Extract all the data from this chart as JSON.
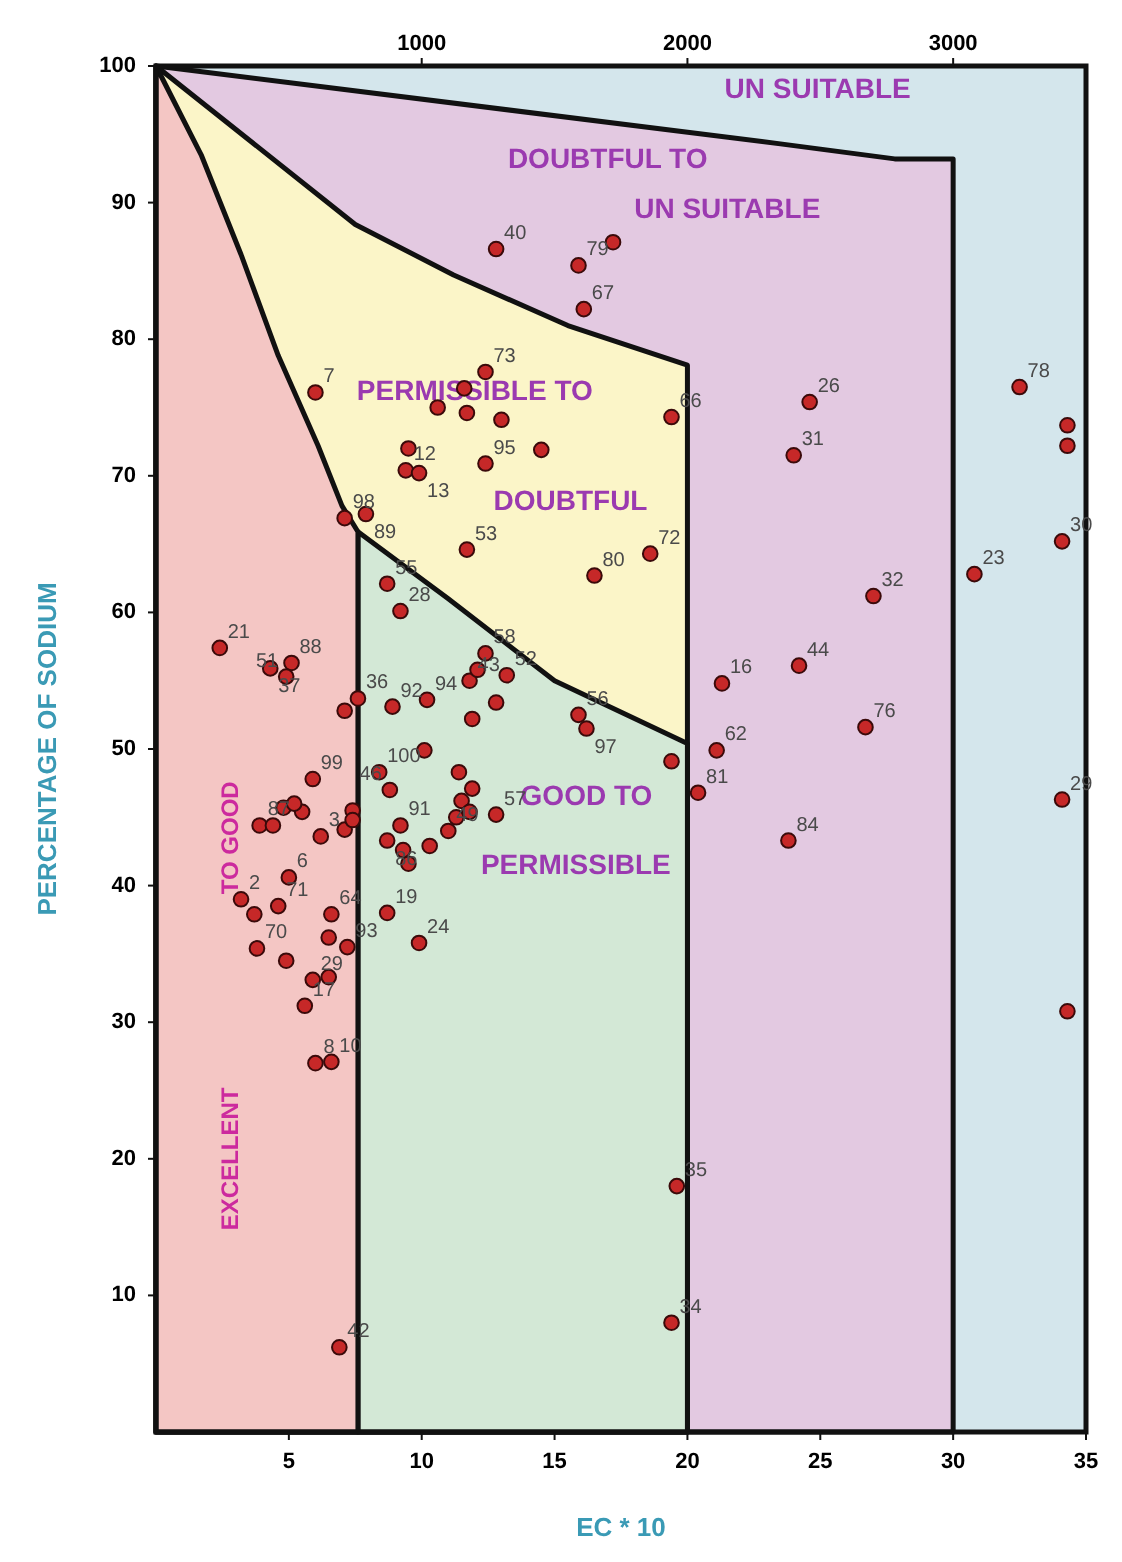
{
  "chart_data": {
    "type": "scatter",
    "xlabel": "EC * 10",
    "ylabel": "PERCENTAGE OF SODIUM",
    "xlim": [
      0,
      35
    ],
    "xticks": [
      5,
      10,
      15,
      20,
      25,
      30,
      35
    ],
    "ylim": [
      0,
      100
    ],
    "yticks": [
      10,
      20,
      30,
      40,
      50,
      60,
      70,
      80,
      90,
      100
    ],
    "x2lim": [
      0,
      3500
    ],
    "x2ticks": [
      1000,
      2000,
      3000
    ],
    "grid": false,
    "annotations": [
      "UN SUITABLE",
      "DOUBTFUL TO",
      "UN SUITABLE",
      "PERMISSIBLE TO",
      "DOUBTFUL",
      "GOOD TO",
      "PERMISSIBLE",
      "TO GOOD",
      "EXCELLENT",
      {
        "text": "40",
        "x": 12.8,
        "y": 86.6
      },
      {
        "text": "79",
        "x": 15.9,
        "y": 85.4
      },
      {
        "text": "67",
        "x": 16.1,
        "y": 82.2
      },
      {
        "text": "73",
        "x": 12.4,
        "y": 77.6
      },
      {
        "text": "7",
        "x": 6.0,
        "y": 76.1
      },
      {
        "text": "66",
        "x": 19.4,
        "y": 74.3
      },
      {
        "text": "95",
        "x": 12.4,
        "y": 70.9
      },
      {
        "text": "12",
        "x": 9.4,
        "y": 70.4
      },
      {
        "text": "13",
        "x": 9.9,
        "y": 70.2
      },
      {
        "text": "98",
        "x": 7.1,
        "y": 66.9
      },
      {
        "text": "89",
        "x": 7.9,
        "y": 67.2
      },
      {
        "text": "53",
        "x": 11.7,
        "y": 64.6
      },
      {
        "text": "80",
        "x": 16.5,
        "y": 62.7
      },
      {
        "text": "72",
        "x": 18.6,
        "y": 64.3
      },
      {
        "text": "55",
        "x": 8.7,
        "y": 62.1
      },
      {
        "text": "28",
        "x": 9.2,
        "y": 60.1
      },
      {
        "text": "21",
        "x": 2.4,
        "y": 57.4
      },
      {
        "text": "88",
        "x": 5.1,
        "y": 56.3
      },
      {
        "text": "37",
        "x": 4.3,
        "y": 55.9
      },
      {
        "text": "51",
        "x": 4.9,
        "y": 55.3
      },
      {
        "text": "36",
        "x": 7.6,
        "y": 53.7
      },
      {
        "text": "92",
        "x": 8.9,
        "y": 53.1
      },
      {
        "text": "94",
        "x": 10.2,
        "y": 53.6
      },
      {
        "text": "43",
        "x": 11.8,
        "y": 55.0
      },
      {
        "text": "58",
        "x": 12.4,
        "y": 57.0
      },
      {
        "text": "52",
        "x": 13.2,
        "y": 55.4
      },
      {
        "text": "56",
        "x": 15.9,
        "y": 52.5
      },
      {
        "text": "97",
        "x": 16.2,
        "y": 51.5
      },
      {
        "text": "81",
        "x": 20.4,
        "y": 46.8
      },
      {
        "text": "62",
        "x": 21.1,
        "y": 49.9
      },
      {
        "text": "57",
        "x": 12.8,
        "y": 45.2
      },
      {
        "text": "49",
        "x": 11.0,
        "y": 44.0
      },
      {
        "text": "91",
        "x": 9.2,
        "y": 44.4
      },
      {
        "text": "100",
        "x": 8.4,
        "y": 48.3
      },
      {
        "text": "46",
        "x": 8.8,
        "y": 47.0
      },
      {
        "text": "99",
        "x": 5.9,
        "y": 47.8
      },
      {
        "text": "87",
        "x": 3.9,
        "y": 44.4
      },
      {
        "text": "3",
        "x": 6.2,
        "y": 43.6
      },
      {
        "text": "86",
        "x": 8.7,
        "y": 43.3
      },
      {
        "text": "2",
        "x": 3.2,
        "y": 39.0
      },
      {
        "text": "71",
        "x": 4.6,
        "y": 38.5
      },
      {
        "text": "6",
        "x": 5.0,
        "y": 40.6
      },
      {
        "text": "64",
        "x": 6.6,
        "y": 37.9
      },
      {
        "text": "93",
        "x": 7.2,
        "y": 35.5
      },
      {
        "text": "70",
        "x": 3.8,
        "y": 35.4
      },
      {
        "text": "29",
        "x": 5.9,
        "y": 33.1
      },
      {
        "text": "17",
        "x": 5.6,
        "y": 31.2
      },
      {
        "text": "8",
        "x": 6.0,
        "y": 27.0
      },
      {
        "text": "10",
        "x": 6.6,
        "y": 27.1
      },
      {
        "text": "19",
        "x": 8.7,
        "y": 38.0
      },
      {
        "text": "24",
        "x": 9.9,
        "y": 35.8
      },
      {
        "text": "35",
        "x": 19.6,
        "y": 18.0
      },
      {
        "text": "34",
        "x": 19.4,
        "y": 8.0
      },
      {
        "text": "42",
        "x": 6.9,
        "y": 6.2
      },
      {
        "text": "84",
        "x": 23.8,
        "y": 43.3
      },
      {
        "text": "29",
        "x": 34.1,
        "y": 46.3
      },
      {
        "text": "26",
        "x": 24.6,
        "y": 75.4
      },
      {
        "text": "31",
        "x": 24.0,
        "y": 71.5
      },
      {
        "text": "78",
        "x": 32.5,
        "y": 76.5
      },
      {
        "text": "30",
        "x": 34.1,
        "y": 65.2
      },
      {
        "text": "23",
        "x": 30.8,
        "y": 62.8
      },
      {
        "text": "32",
        "x": 27.0,
        "y": 61.2
      },
      {
        "text": "44",
        "x": 24.2,
        "y": 56.1
      },
      {
        "text": "16",
        "x": 21.3,
        "y": 54.8
      },
      {
        "text": "76",
        "x": 26.7,
        "y": 51.6
      }
    ],
    "series": [
      {
        "type": "area",
        "color": "#e3c9e1",
        "x": [
          0,
          23.5,
          27.8,
          30
        ],
        "values": [
          100,
          94.3,
          93.2,
          93.2
        ]
      },
      {
        "type": "area",
        "color": "#fbf5c8",
        "x": [
          0,
          7.5,
          11.2,
          15.5,
          20
        ],
        "values": [
          100,
          88.4,
          84.7,
          81,
          78.1
        ]
      },
      {
        "type": "area",
        "color": "#d3e8d6",
        "x": [
          7.6,
          11,
          15,
          20
        ],
        "values": [
          65.9,
          61,
          55,
          50.4
        ]
      },
      {
        "type": "area",
        "color": "#f4c6c4",
        "x": [
          0,
          1.7,
          3.2,
          4.6,
          6.1,
          7,
          7.6
        ],
        "values": [
          100,
          93.5,
          86.2,
          78.8,
          72.2,
          67.8,
          65.9
        ]
      },
      {
        "color": "#c62828",
        "x": [
          12.8,
          15.9,
          17.2,
          16.1,
          12.4,
          11.6,
          10.6,
          11.7,
          13.0,
          6.0,
          19.4,
          9.5,
          14.5,
          12.4,
          9.4,
          9.9,
          7.1,
          7.9,
          11.7,
          16.5,
          18.6,
          8.7,
          9.2,
          2.4,
          5.1,
          4.3,
          4.9,
          7.6,
          7.1,
          8.9,
          10.2,
          11.8,
          12.1,
          12.4,
          13.2,
          12.8,
          11.9,
          15.9,
          16.2,
          19.4,
          20.4,
          21.1,
          10.1,
          11.4,
          11.9,
          11.5,
          12.8,
          11.3,
          11.0,
          11.8,
          10.3,
          9.2,
          9.3,
          9.5,
          8.4,
          8.8,
          5.9,
          5.5,
          4.8,
          5.2,
          3.9,
          4.4,
          6.2,
          7.1,
          7.4,
          7.4,
          8.7,
          3.2,
          3.7,
          4.6,
          5.0,
          6.6,
          6.5,
          7.2,
          3.8,
          4.9,
          6.5,
          5.9,
          5.6,
          6.0,
          6.6,
          8.7,
          9.9,
          19.6,
          19.4,
          6.9,
          23.8,
          34.1,
          34.3,
          24.6,
          24.0,
          32.5,
          34.3,
          34.3,
          34.1,
          30.8,
          27.0,
          24.2,
          21.3,
          26.7
        ],
        "values": [
          86.6,
          85.4,
          87.1,
          82.2,
          77.6,
          76.4,
          75.0,
          74.6,
          74.1,
          76.1,
          74.3,
          72.0,
          71.9,
          70.9,
          70.4,
          70.2,
          66.9,
          67.2,
          64.6,
          62.7,
          64.3,
          62.1,
          60.1,
          57.4,
          56.3,
          55.9,
          55.3,
          53.7,
          52.8,
          53.1,
          53.6,
          55.0,
          55.8,
          57.0,
          55.4,
          53.4,
          52.2,
          52.5,
          51.5,
          49.1,
          46.8,
          49.9,
          49.9,
          48.3,
          47.1,
          46.2,
          45.2,
          45.0,
          44.0,
          45.4,
          42.9,
          44.4,
          42.6,
          41.6,
          48.3,
          47.0,
          47.8,
          45.4,
          45.7,
          46.0,
          44.4,
          44.4,
          43.6,
          44.1,
          45.5,
          44.8,
          43.3,
          39.0,
          37.9,
          38.5,
          40.6,
          37.9,
          36.2,
          35.5,
          35.4,
          34.5,
          33.3,
          33.1,
          31.2,
          27.0,
          27.1,
          38.0,
          35.8,
          18.0,
          8.0,
          6.2,
          43.3,
          46.3,
          30.8,
          75.4,
          71.5,
          76.5,
          73.7,
          72.2,
          65.2,
          62.8,
          61.2,
          56.1,
          54.8,
          51.6
        ]
      }
    ]
  }
}
